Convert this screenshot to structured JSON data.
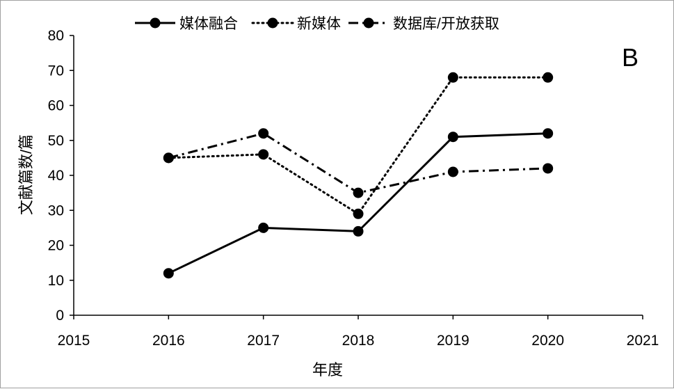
{
  "chart_data": {
    "type": "line",
    "panel_label": "B",
    "xlabel": "年度",
    "ylabel": "文献篇数/篇",
    "xlim": [
      2015,
      2021
    ],
    "ylim": [
      0,
      80
    ],
    "x_ticks": [
      2015,
      2016,
      2017,
      2018,
      2019,
      2020,
      2021
    ],
    "y_ticks": [
      0,
      10,
      20,
      30,
      40,
      50,
      60,
      70,
      80
    ],
    "grid": false,
    "legend_position": "top",
    "series": [
      {
        "name": "媒体融合",
        "style": "solid",
        "color": "#000000",
        "x": [
          2016,
          2017,
          2018,
          2019,
          2020
        ],
        "y": [
          12,
          25,
          24,
          51,
          52
        ]
      },
      {
        "name": "新媒体",
        "style": "dotted",
        "color": "#000000",
        "x": [
          2016,
          2017,
          2018,
          2019,
          2020
        ],
        "y": [
          45,
          46,
          29,
          68,
          68
        ]
      },
      {
        "name": "数据库/开放获取",
        "style": "dashdot",
        "color": "#000000",
        "x": [
          2016,
          2017,
          2018,
          2019,
          2020
        ],
        "y": [
          45,
          52,
          35,
          41,
          42
        ]
      }
    ]
  }
}
